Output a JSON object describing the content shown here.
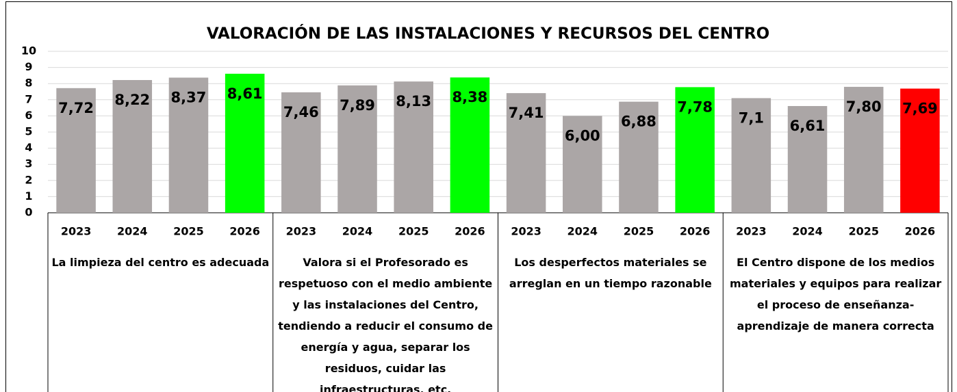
{
  "chart_data": {
    "type": "bar",
    "title": "VALORACIÓN DE LAS INSTALACIONES Y RECURSOS DEL CENTRO",
    "ylim": [
      0,
      10
    ],
    "yticks": [
      0,
      1,
      2,
      3,
      4,
      5,
      6,
      7,
      8,
      9,
      10
    ],
    "grid": true,
    "groups": [
      {
        "label": "La limpieza del centro es adecuada",
        "categories": [
          "2023",
          "2024",
          "2025",
          "2026"
        ],
        "values": [
          7.72,
          8.22,
          8.37,
          8.61
        ],
        "value_labels": [
          "7,72",
          "8,22",
          "8,37",
          "8,61"
        ],
        "colors": [
          "#aba6a6",
          "#aba6a6",
          "#aba6a6",
          "#00ff00"
        ]
      },
      {
        "label": "Valora si el Profesorado es respetuoso con el medio ambiente y las instalaciones del Centro, tendiendo a reducir el consumo de energía y agua, separar los residuos, cuidar las infraestructuras, etc.",
        "categories": [
          "2023",
          "2024",
          "2025",
          "2026"
        ],
        "values": [
          7.46,
          7.89,
          8.13,
          8.38
        ],
        "value_labels": [
          "7,46",
          "7,89",
          "8,13",
          "8,38"
        ],
        "colors": [
          "#aba6a6",
          "#aba6a6",
          "#aba6a6",
          "#00ff00"
        ]
      },
      {
        "label": "Los desperfectos materiales se arreglan en un tiempo razonable",
        "categories": [
          "2023",
          "2024",
          "2025",
          "2026"
        ],
        "values": [
          7.41,
          6,
          6.88,
          7.78
        ],
        "value_labels": [
          "7,41",
          "6,00",
          "6,88",
          "7,78"
        ],
        "colors": [
          "#aba6a6",
          "#aba6a6",
          "#aba6a6",
          "#00ff00"
        ]
      },
      {
        "label": "El Centro dispone de los medios materiales y equipos para realizar el proceso de enseñanza-aprendizaje de manera correcta",
        "categories": [
          "2023",
          "2024",
          "2025",
          "2026"
        ],
        "values": [
          7.1,
          6.61,
          7.8,
          7.69
        ],
        "value_labels": [
          "7,1",
          "6,61",
          "7,80",
          "7,69"
        ],
        "colors": [
          "#aba6a6",
          "#aba6a6",
          "#aba6a6",
          "#ff0000"
        ]
      }
    ]
  }
}
